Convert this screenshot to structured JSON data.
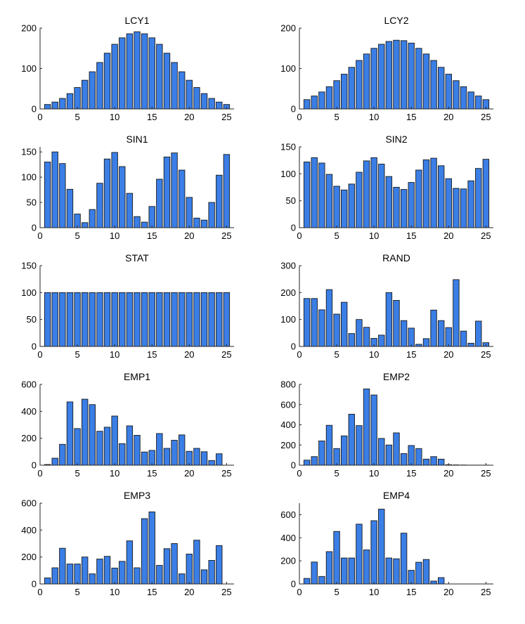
{
  "figure": {
    "bar_color": "#3a7ee6",
    "edge_color": "#1a1a1a"
  },
  "chart_data": [
    {
      "type": "bar",
      "title": "LCY1",
      "categories": [
        1,
        2,
        3,
        4,
        5,
        6,
        7,
        8,
        9,
        10,
        11,
        12,
        13,
        14,
        15,
        16,
        17,
        18,
        19,
        20,
        21,
        22,
        23,
        24,
        25
      ],
      "values": [
        11,
        17,
        26,
        38,
        53,
        71,
        92,
        115,
        138,
        160,
        176,
        186,
        191,
        186,
        176,
        160,
        138,
        115,
        92,
        71,
        53,
        38,
        26,
        17,
        11
      ],
      "xlim": [
        0,
        26
      ],
      "ylim": [
        0,
        200
      ],
      "xticks": [
        0,
        5,
        10,
        15,
        20,
        25
      ],
      "yticks": [
        0,
        100,
        200
      ]
    },
    {
      "type": "bar",
      "title": "LCY2",
      "categories": [
        1,
        2,
        3,
        4,
        5,
        6,
        7,
        8,
        9,
        10,
        11,
        12,
        13,
        14,
        15,
        16,
        17,
        18,
        19,
        20,
        21,
        22,
        23,
        24,
        25
      ],
      "values": [
        23,
        32,
        42,
        55,
        70,
        86,
        103,
        120,
        136,
        150,
        160,
        167,
        170,
        169,
        163,
        150,
        136,
        120,
        103,
        86,
        70,
        55,
        42,
        32,
        23
      ],
      "xlim": [
        0,
        26
      ],
      "ylim": [
        0,
        200
      ],
      "xticks": [
        0,
        5,
        10,
        15,
        20,
        25
      ],
      "yticks": [
        0,
        100,
        200
      ]
    },
    {
      "type": "bar",
      "title": "SIN1",
      "categories": [
        1,
        2,
        3,
        4,
        5,
        6,
        7,
        8,
        9,
        10,
        11,
        12,
        13,
        14,
        15,
        16,
        17,
        18,
        19,
        20,
        21,
        22,
        23,
        24,
        25
      ],
      "values": [
        130,
        150,
        127,
        76,
        27,
        10,
        36,
        88,
        136,
        149,
        121,
        68,
        22,
        11,
        42,
        96,
        140,
        148,
        114,
        60,
        19,
        15,
        50,
        104,
        145
      ],
      "xlim": [
        0,
        26
      ],
      "ylim": [
        0,
        160
      ],
      "xticks": [
        0,
        5,
        10,
        15,
        20,
        25
      ],
      "yticks": [
        0,
        50,
        100,
        150
      ]
    },
    {
      "type": "bar",
      "title": "SIN2",
      "categories": [
        1,
        2,
        3,
        4,
        5,
        6,
        7,
        8,
        9,
        10,
        11,
        12,
        13,
        14,
        15,
        16,
        17,
        18,
        19,
        20,
        21,
        22,
        23,
        24,
        25
      ],
      "values": [
        122,
        130,
        120,
        99,
        77,
        70,
        81,
        103,
        124,
        130,
        118,
        95,
        75,
        71,
        84,
        107,
        126,
        129,
        115,
        91,
        73,
        72,
        87,
        110,
        127
      ],
      "xlim": [
        0,
        26
      ],
      "ylim": [
        0,
        150
      ],
      "xticks": [
        0,
        5,
        10,
        15,
        20,
        25
      ],
      "yticks": [
        0,
        50,
        100,
        150
      ]
    },
    {
      "type": "bar",
      "title": "STAT",
      "categories": [
        1,
        2,
        3,
        4,
        5,
        6,
        7,
        8,
        9,
        10,
        11,
        12,
        13,
        14,
        15,
        16,
        17,
        18,
        19,
        20,
        21,
        22,
        23,
        24,
        25
      ],
      "values": [
        100,
        100,
        100,
        100,
        100,
        100,
        100,
        100,
        100,
        100,
        100,
        100,
        100,
        100,
        100,
        100,
        100,
        100,
        100,
        100,
        100,
        100,
        100,
        100,
        100
      ],
      "xlim": [
        0,
        26
      ],
      "ylim": [
        0,
        150
      ],
      "xticks": [
        0,
        5,
        10,
        15,
        20,
        25
      ],
      "yticks": [
        0,
        50,
        100,
        150
      ]
    },
    {
      "type": "bar",
      "title": "RAND",
      "categories": [
        1,
        2,
        3,
        4,
        5,
        6,
        7,
        8,
        9,
        10,
        11,
        12,
        13,
        14,
        15,
        16,
        17,
        18,
        19,
        20,
        21,
        22,
        23,
        24,
        25
      ],
      "values": [
        178,
        178,
        136,
        211,
        120,
        164,
        48,
        100,
        71,
        30,
        42,
        200,
        171,
        96,
        68,
        8,
        29,
        135,
        96,
        70,
        248,
        57,
        12,
        94,
        14
      ],
      "xlim": [
        0,
        26
      ],
      "ylim": [
        0,
        300
      ],
      "xticks": [
        0,
        5,
        10,
        15,
        20,
        25
      ],
      "yticks": [
        0,
        100,
        200,
        300
      ]
    },
    {
      "type": "bar",
      "title": "EMP1",
      "categories": [
        1,
        2,
        3,
        4,
        5,
        6,
        7,
        8,
        9,
        10,
        11,
        12,
        13,
        14,
        15,
        16,
        17,
        18,
        19,
        20,
        21,
        22,
        23,
        24,
        25
      ],
      "values": [
        5,
        52,
        155,
        470,
        272,
        490,
        450,
        252,
        282,
        365,
        160,
        292,
        222,
        98,
        110,
        235,
        125,
        185,
        225,
        103,
        125,
        100,
        35,
        85,
        0
      ],
      "xlim": [
        0,
        26
      ],
      "ylim": [
        0,
        600
      ],
      "xticks": [
        0,
        5,
        10,
        15,
        20,
        25
      ],
      "yticks": [
        0,
        200,
        400,
        600
      ]
    },
    {
      "type": "bar",
      "title": "EMP2",
      "categories": [
        1,
        2,
        3,
        4,
        5,
        6,
        7,
        8,
        9,
        10,
        11,
        12,
        13,
        14,
        15,
        16,
        17,
        18,
        19,
        20,
        21,
        22,
        23,
        24,
        25
      ],
      "values": [
        50,
        85,
        240,
        395,
        165,
        290,
        505,
        392,
        755,
        695,
        265,
        200,
        320,
        115,
        195,
        165,
        60,
        85,
        60,
        5,
        3,
        2,
        1,
        1,
        1
      ],
      "xlim": [
        0,
        26
      ],
      "ylim": [
        0,
        800
      ],
      "xticks": [
        0,
        5,
        10,
        15,
        20,
        25
      ],
      "yticks": [
        0,
        200,
        400,
        600,
        800
      ]
    },
    {
      "type": "bar",
      "title": "EMP3",
      "categories": [
        1,
        2,
        3,
        4,
        5,
        6,
        7,
        8,
        9,
        10,
        11,
        12,
        13,
        14,
        15,
        16,
        17,
        18,
        19,
        20,
        21,
        22,
        23,
        24
      ],
      "values": [
        45,
        120,
        265,
        148,
        148,
        200,
        75,
        185,
        205,
        118,
        168,
        320,
        120,
        485,
        535,
        138,
        262,
        300,
        75,
        222,
        325,
        105,
        175,
        285
      ],
      "xlim": [
        0,
        26
      ],
      "ylim": [
        0,
        600
      ],
      "xticks": [
        0,
        5,
        10,
        15,
        20,
        25
      ],
      "yticks": [
        0,
        200,
        400,
        600
      ]
    },
    {
      "type": "bar",
      "title": "EMP4",
      "categories": [
        1,
        2,
        3,
        4,
        5,
        6,
        7,
        8,
        9,
        10,
        11,
        12,
        13,
        14,
        15,
        16,
        17,
        18,
        19
      ],
      "values": [
        48,
        190,
        65,
        280,
        455,
        225,
        225,
        518,
        295,
        548,
        648,
        225,
        218,
        440,
        118,
        188,
        212,
        25,
        55
      ],
      "xlim": [
        0,
        26
      ],
      "ylim": [
        0,
        700
      ],
      "xticks": [
        0,
        5,
        10,
        15,
        20,
        25
      ],
      "yticks": [
        0,
        200,
        400,
        600
      ]
    }
  ]
}
